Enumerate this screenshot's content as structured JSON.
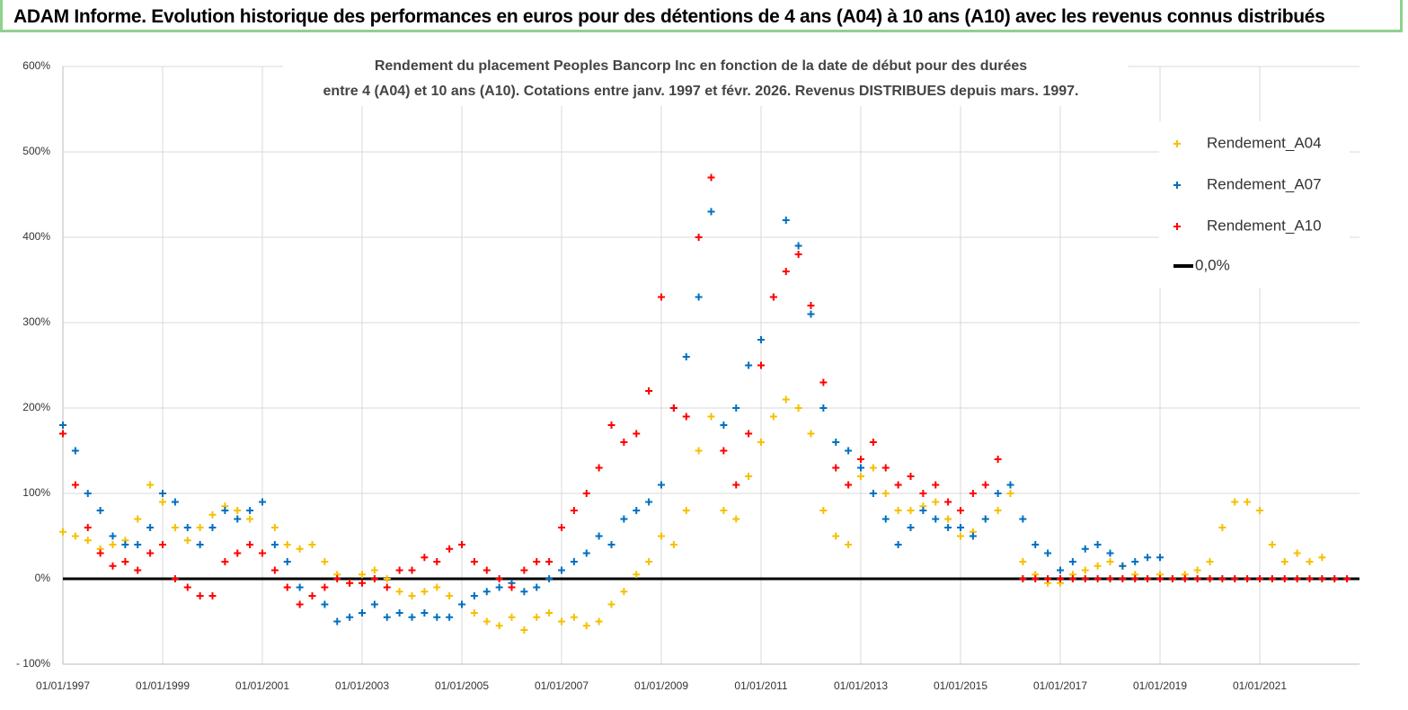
{
  "header": {
    "title": "ADAM Informe. Evolution historique des performances en euros pour des détentions de 4 ans (A04) à 10 ans (A10) avec les revenus connus distribués"
  },
  "chart_data": {
    "type": "scatter",
    "title": "Rendement du placement Peoples Bancorp Inc en fonction de la date de début pour des durées",
    "subtitle": "entre 4 (A04) et 10 ans (A10).  Cotations entre janv. 1997 et févr. 2026. Revenus DISTRIBUES depuis mars. 1997.",
    "x": [
      "1997-01-01",
      "1997-04-01",
      "1997-07-01",
      "1997-10-01",
      "1998-01-01",
      "1998-04-01",
      "1998-07-01",
      "1998-10-01",
      "1999-01-01",
      "1999-04-01",
      "1999-07-01",
      "1999-10-01",
      "2000-01-01",
      "2000-04-01",
      "2000-07-01",
      "2000-10-01",
      "2001-01-01",
      "2001-04-01",
      "2001-07-01",
      "2001-10-01",
      "2002-01-01",
      "2002-04-01",
      "2002-07-01",
      "2002-10-01",
      "2003-01-01",
      "2003-04-01",
      "2003-07-01",
      "2003-10-01",
      "2004-01-01",
      "2004-04-01",
      "2004-07-01",
      "2004-10-01",
      "2005-01-01",
      "2005-04-01",
      "2005-07-01",
      "2005-10-01",
      "2006-01-01",
      "2006-04-01",
      "2006-07-01",
      "2006-10-01",
      "2007-01-01",
      "2007-04-01",
      "2007-07-01",
      "2007-10-01",
      "2008-01-01",
      "2008-04-01",
      "2008-07-01",
      "2008-10-01",
      "2009-01-01",
      "2009-04-01",
      "2009-07-01",
      "2009-10-01",
      "2010-01-01",
      "2010-04-01",
      "2010-07-01",
      "2010-10-01",
      "2011-01-01",
      "2011-04-01",
      "2011-07-01",
      "2011-10-01",
      "2012-01-01",
      "2012-04-01",
      "2012-07-01",
      "2012-10-01",
      "2013-01-01",
      "2013-04-01",
      "2013-07-01",
      "2013-10-01",
      "2014-01-01",
      "2014-04-01",
      "2014-07-01",
      "2014-10-01",
      "2015-01-01",
      "2015-04-01",
      "2015-07-01",
      "2015-10-01",
      "2016-01-01",
      "2016-04-01",
      "2016-07-01",
      "2016-10-01",
      "2017-01-01",
      "2017-04-01",
      "2017-07-01",
      "2017-10-01",
      "2018-01-01",
      "2018-04-01",
      "2018-07-01",
      "2018-10-01",
      "2019-01-01",
      "2019-04-01",
      "2019-07-01",
      "2019-10-01",
      "2020-01-01",
      "2020-04-01",
      "2020-07-01",
      "2020-10-01",
      "2021-01-01",
      "2021-04-01",
      "2021-07-01",
      "2021-10-01",
      "2022-01-01",
      "2022-04-01",
      "2022-07-01",
      "2022-10-01"
    ],
    "series": [
      {
        "name": "Rendement_A04",
        "color": "#f5c000",
        "values": [
          55,
          50,
          45,
          35,
          40,
          45,
          70,
          110,
          90,
          60,
          45,
          60,
          75,
          85,
          80,
          70,
          90,
          60,
          40,
          35,
          40,
          20,
          5,
          -5,
          5,
          10,
          0,
          -15,
          -20,
          -15,
          -10,
          -20,
          -30,
          -40,
          -50,
          -55,
          -45,
          -60,
          -45,
          -40,
          -50,
          -45,
          -55,
          -50,
          -30,
          -15,
          5,
          20,
          50,
          40,
          80,
          150,
          190,
          80,
          70,
          120,
          160,
          190,
          210,
          200,
          170,
          80,
          50,
          40,
          120,
          130,
          100,
          80,
          80,
          85,
          90,
          70,
          50,
          55,
          70,
          80,
          100,
          20,
          5,
          -5,
          -5,
          5,
          10,
          15,
          20,
          15,
          5,
          0,
          5,
          0,
          5,
          10,
          20,
          60,
          90,
          90,
          80,
          40,
          20,
          30,
          20,
          25,
          null,
          null
        ]
      },
      {
        "name": "Rendement_A07",
        "color": "#0070c0",
        "values": [
          180,
          150,
          100,
          80,
          50,
          40,
          40,
          60,
          100,
          90,
          60,
          40,
          60,
          80,
          70,
          80,
          90,
          40,
          20,
          -10,
          -20,
          -30,
          -50,
          -45,
          -40,
          -30,
          -45,
          -40,
          -45,
          -40,
          -45,
          -45,
          -30,
          -20,
          -15,
          -10,
          -5,
          -15,
          -10,
          0,
          10,
          20,
          30,
          50,
          40,
          70,
          80,
          90,
          110,
          200,
          260,
          330,
          430,
          180,
          200,
          250,
          280,
          330,
          420,
          390,
          310,
          200,
          160,
          150,
          130,
          100,
          70,
          40,
          60,
          80,
          70,
          60,
          60,
          50,
          70,
          100,
          110,
          70,
          40,
          30,
          10,
          20,
          35,
          40,
          30,
          15,
          20,
          25,
          25,
          null,
          null,
          null,
          null,
          null,
          null,
          null,
          null,
          null,
          null,
          null,
          null,
          null,
          null,
          null
        ]
      },
      {
        "name": "Rendement_A10",
        "color": "#ff0000",
        "values": [
          170,
          110,
          60,
          30,
          15,
          20,
          10,
          30,
          40,
          0,
          -10,
          -20,
          -20,
          20,
          30,
          40,
          30,
          10,
          -10,
          -30,
          -20,
          -10,
          0,
          -5,
          -5,
          0,
          -10,
          10,
          10,
          25,
          20,
          35,
          40,
          20,
          10,
          0,
          -10,
          10,
          20,
          20,
          60,
          80,
          100,
          130,
          180,
          160,
          170,
          220,
          330,
          200,
          190,
          400,
          470,
          150,
          110,
          170,
          250,
          330,
          360,
          380,
          320,
          230,
          130,
          110,
          140,
          160,
          130,
          110,
          120,
          100,
          110,
          90,
          80,
          100,
          110,
          140,
          null,
          0,
          0,
          0,
          0,
          0,
          0,
          0,
          0,
          0,
          0,
          0,
          0,
          0,
          0,
          0,
          0,
          0,
          0,
          0,
          0,
          0,
          0,
          0,
          0,
          0,
          0,
          0
        ]
      }
    ],
    "reference_line": {
      "name": "0,0%",
      "value": 0,
      "color": "#000000"
    },
    "xlim": [
      "1997-01-01",
      "2023-01-01"
    ],
    "xticks": [
      {
        "value": "1997-01-01",
        "label": "01/01/1997"
      },
      {
        "value": "1999-01-01",
        "label": "01/01/1999"
      },
      {
        "value": "2001-01-01",
        "label": "01/01/2001"
      },
      {
        "value": "2003-01-01",
        "label": "01/01/2003"
      },
      {
        "value": "2005-01-01",
        "label": "01/01/2005"
      },
      {
        "value": "2007-01-01",
        "label": "01/01/2007"
      },
      {
        "value": "2009-01-01",
        "label": "01/01/2009"
      },
      {
        "value": "2011-01-01",
        "label": "01/01/2011"
      },
      {
        "value": "2013-01-01",
        "label": "01/01/2013"
      },
      {
        "value": "2015-01-01",
        "label": "01/01/2015"
      },
      {
        "value": "2017-01-01",
        "label": "01/01/2017"
      },
      {
        "value": "2019-01-01",
        "label": "01/01/2019"
      },
      {
        "value": "2021-01-01",
        "label": "01/01/2021"
      }
    ],
    "ylim": [
      -100,
      600
    ],
    "yticks": [
      {
        "value": -100,
        "label": "- 100%"
      },
      {
        "value": 0,
        "label": "0%"
      },
      {
        "value": 100,
        "label": "100%"
      },
      {
        "value": 200,
        "label": "200%"
      },
      {
        "value": 300,
        "label": "300%"
      },
      {
        "value": 400,
        "label": "400%"
      },
      {
        "value": 500,
        "label": "500%"
      },
      {
        "value": 600,
        "label": "600%"
      }
    ],
    "grid": true,
    "legend": "right"
  }
}
